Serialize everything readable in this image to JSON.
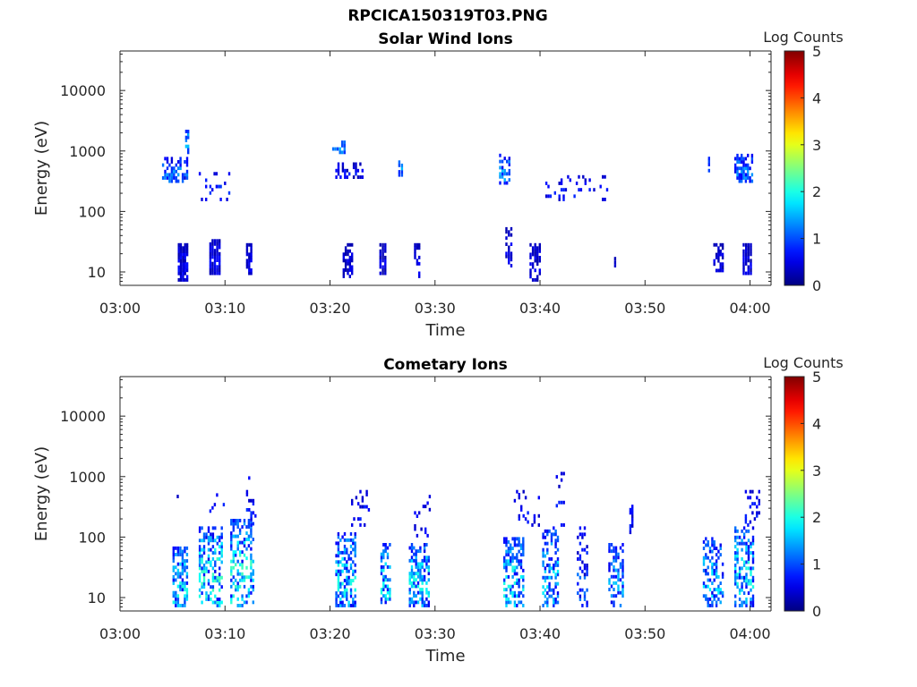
{
  "figure": {
    "filename": "RPCICA150319T03.PNG"
  },
  "colorbar": {
    "label": "Log Counts",
    "ticks": [
      "5",
      "4",
      "3",
      "2",
      "1",
      "0"
    ],
    "range": [
      0,
      5
    ],
    "colormap": "jet"
  },
  "chart_data": [
    {
      "type": "heatmap",
      "title": "Solar Wind Ions",
      "xlabel": "Time",
      "ylabel": "Energy (eV)",
      "x_tick_labels": [
        "03:00",
        "03:10",
        "03:20",
        "03:30",
        "03:40",
        "03:50",
        "04:00"
      ],
      "y_tick_labels": [
        "10",
        "100",
        "1000",
        "10000"
      ],
      "y_scale": "log",
      "ylim": [
        6,
        45000
      ],
      "xlim_minutes": [
        0,
        62
      ],
      "colorbar_label": "Log Counts",
      "colorbar_range": [
        0,
        5
      ],
      "clusters": [
        {
          "t": [
            4.0,
            6.5
          ],
          "e": [
            300,
            800
          ],
          "c": [
            0.4,
            1.4
          ],
          "d": 0.55
        },
        {
          "t": [
            6.2,
            6.6
          ],
          "e": [
            900,
            2500
          ],
          "c": [
            0.8,
            1.6
          ],
          "d": 0.6
        },
        {
          "t": [
            7.3,
            10.5
          ],
          "e": [
            150,
            450
          ],
          "c": [
            0.4,
            0.9
          ],
          "d": 0.18
        },
        {
          "t": [
            5.5,
            6.5
          ],
          "e": [
            7,
            30
          ],
          "c": [
            0.2,
            0.7
          ],
          "d": 0.9
        },
        {
          "t": [
            8.5,
            9.6
          ],
          "e": [
            9,
            35
          ],
          "c": [
            0.2,
            0.7
          ],
          "d": 0.85
        },
        {
          "t": [
            12.0,
            12.6
          ],
          "e": [
            9,
            30
          ],
          "c": [
            0.2,
            0.6
          ],
          "d": 0.85
        },
        {
          "t": [
            20.2,
            21.5
          ],
          "e": [
            900,
            1500
          ],
          "c": [
            0.8,
            1.6
          ],
          "d": 0.6
        },
        {
          "t": [
            20.5,
            23.2
          ],
          "e": [
            350,
            650
          ],
          "c": [
            0.2,
            0.8
          ],
          "d": 0.45
        },
        {
          "t": [
            26.5,
            27.0
          ],
          "e": [
            380,
            700
          ],
          "c": [
            0.8,
            1.6
          ],
          "d": 0.8
        },
        {
          "t": [
            21.2,
            22.2
          ],
          "e": [
            8,
            30
          ],
          "c": [
            0.2,
            0.6
          ],
          "d": 0.6
        },
        {
          "t": [
            24.7,
            25.4
          ],
          "e": [
            9,
            30
          ],
          "c": [
            0.2,
            0.6
          ],
          "d": 0.85
        },
        {
          "t": [
            28.0,
            28.6
          ],
          "e": [
            8,
            30
          ],
          "c": [
            0.2,
            0.6
          ],
          "d": 0.55
        },
        {
          "t": [
            36.1,
            37.2
          ],
          "e": [
            280,
            900
          ],
          "c": [
            0.5,
            1.6
          ],
          "d": 0.55
        },
        {
          "t": [
            36.7,
            37.4
          ],
          "e": [
            12,
            55
          ],
          "c": [
            0.2,
            0.6
          ],
          "d": 0.55
        },
        {
          "t": [
            39.0,
            40.1
          ],
          "e": [
            7,
            30
          ],
          "c": [
            0.2,
            0.6
          ],
          "d": 0.55
        },
        {
          "t": [
            40.5,
            46.5
          ],
          "e": [
            150,
            400
          ],
          "c": [
            0.3,
            0.8
          ],
          "d": 0.12
        },
        {
          "t": [
            46.8,
            47.3
          ],
          "e": [
            12,
            18
          ],
          "c": [
            0.2,
            0.5
          ],
          "d": 0.8
        },
        {
          "t": [
            56.0,
            56.3
          ],
          "e": [
            400,
            800
          ],
          "c": [
            0.5,
            1.2
          ],
          "d": 0.6
        },
        {
          "t": [
            58.5,
            60.3
          ],
          "e": [
            300,
            900
          ],
          "c": [
            0.5,
            1.4
          ],
          "d": 0.55
        },
        {
          "t": [
            56.5,
            57.5
          ],
          "e": [
            10,
            30
          ],
          "c": [
            0.2,
            0.6
          ],
          "d": 0.6
        },
        {
          "t": [
            59.3,
            60.2
          ],
          "e": [
            9,
            30
          ],
          "c": [
            0.2,
            0.6
          ],
          "d": 0.8
        }
      ]
    },
    {
      "type": "heatmap",
      "title": "Cometary Ions",
      "xlabel": "Time",
      "ylabel": "Energy (eV)",
      "x_tick_labels": [
        "03:00",
        "03:10",
        "03:20",
        "03:30",
        "03:40",
        "03:50",
        "04:00"
      ],
      "y_tick_labels": [
        "10",
        "100",
        "1000",
        "10000"
      ],
      "y_scale": "log",
      "ylim": [
        6,
        45000
      ],
      "xlim_minutes": [
        0,
        62
      ],
      "colorbar_label": "Log Counts",
      "colorbar_range": [
        0,
        5
      ],
      "clusters": [
        {
          "t": [
            5.0,
            6.5
          ],
          "e": [
            7,
            70
          ],
          "c": [
            0.6,
            2.0
          ],
          "d": 0.6
        },
        {
          "t": [
            5.4,
            6.4
          ],
          "e": [
            350,
            500
          ],
          "c": [
            0.3,
            0.8
          ],
          "d": 0.35
        },
        {
          "t": [
            7.5,
            9.8
          ],
          "e": [
            7,
            150
          ],
          "c": [
            0.5,
            2.2
          ],
          "d": 0.45
        },
        {
          "t": [
            8.5,
            10.0
          ],
          "e": [
            200,
            600
          ],
          "c": [
            0.3,
            0.8
          ],
          "d": 0.15
        },
        {
          "t": [
            10.5,
            12.8
          ],
          "e": [
            7,
            200
          ],
          "c": [
            0.5,
            2.2
          ],
          "d": 0.45
        },
        {
          "t": [
            12.0,
            13.2
          ],
          "e": [
            150,
            600
          ],
          "c": [
            0.3,
            0.9
          ],
          "d": 0.2
        },
        {
          "t": [
            12.2,
            12.5
          ],
          "e": [
            900,
            1300
          ],
          "c": [
            0.3,
            0.8
          ],
          "d": 0.4
        },
        {
          "t": [
            20.5,
            22.5
          ],
          "e": [
            7,
            120
          ],
          "c": [
            0.5,
            2.0
          ],
          "d": 0.5
        },
        {
          "t": [
            22.0,
            23.8
          ],
          "e": [
            150,
            600
          ],
          "c": [
            0.3,
            0.8
          ],
          "d": 0.18
        },
        {
          "t": [
            24.8,
            25.8
          ],
          "e": [
            7,
            80
          ],
          "c": [
            0.5,
            2.0
          ],
          "d": 0.5
        },
        {
          "t": [
            27.5,
            29.5
          ],
          "e": [
            7,
            80
          ],
          "c": [
            0.5,
            2.0
          ],
          "d": 0.45
        },
        {
          "t": [
            28.0,
            29.6
          ],
          "e": [
            100,
            500
          ],
          "c": [
            0.3,
            0.8
          ],
          "d": 0.15
        },
        {
          "t": [
            36.5,
            38.5
          ],
          "e": [
            7,
            100
          ],
          "c": [
            0.5,
            2.0
          ],
          "d": 0.45
        },
        {
          "t": [
            37.5,
            40.0
          ],
          "e": [
            150,
            600
          ],
          "c": [
            0.3,
            0.8
          ],
          "d": 0.15
        },
        {
          "t": [
            40.2,
            41.8
          ],
          "e": [
            7,
            150
          ],
          "c": [
            0.5,
            1.8
          ],
          "d": 0.45
        },
        {
          "t": [
            41.5,
            42.4
          ],
          "e": [
            150,
            1200
          ],
          "c": [
            0.3,
            0.8
          ],
          "d": 0.15
        },
        {
          "t": [
            43.5,
            44.6
          ],
          "e": [
            7,
            150
          ],
          "c": [
            0.3,
            1.2
          ],
          "d": 0.3
        },
        {
          "t": [
            46.5,
            48.0
          ],
          "e": [
            7,
            80
          ],
          "c": [
            0.5,
            1.6
          ],
          "d": 0.5
        },
        {
          "t": [
            48.5,
            48.9
          ],
          "e": [
            100,
            500
          ],
          "c": [
            0.3,
            0.8
          ],
          "d": 0.3
        },
        {
          "t": [
            55.5,
            57.5
          ],
          "e": [
            7,
            100
          ],
          "c": [
            0.5,
            1.8
          ],
          "d": 0.4
        },
        {
          "t": [
            58.5,
            60.4
          ],
          "e": [
            7,
            150
          ],
          "c": [
            0.5,
            2.0
          ],
          "d": 0.5
        },
        {
          "t": [
            59.5,
            61.2
          ],
          "e": [
            150,
            600
          ],
          "c": [
            0.3,
            0.8
          ],
          "d": 0.2
        }
      ]
    }
  ]
}
